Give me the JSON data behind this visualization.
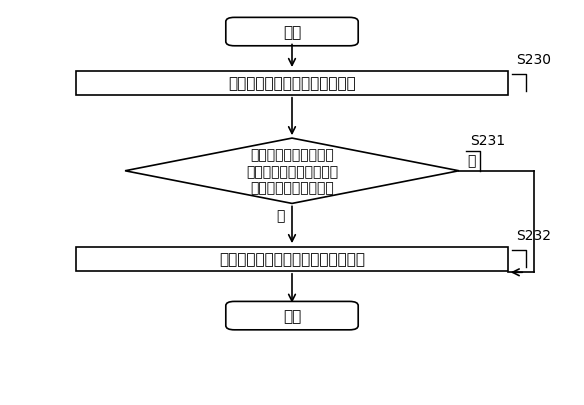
{
  "title": "",
  "background_color": "#ffffff",
  "start_text": "开始",
  "end_text": "结束",
  "box1_text": "接收针对一商户的退单请求信息",
  "diamond_text": "根据所述退单请求信息\n确定存在与所述退单请求\n信息对应的评分操作吗",
  "box2_text": "执行与所述评分操作对应的相反操作",
  "label_s230": "S230",
  "label_s231": "S231",
  "label_s232": "S232",
  "yes_text": "是",
  "no_text": "否",
  "line_color": "#000000",
  "fill_color": "#ffffff",
  "text_color": "#000000",
  "font_size": 11,
  "label_font_size": 10
}
